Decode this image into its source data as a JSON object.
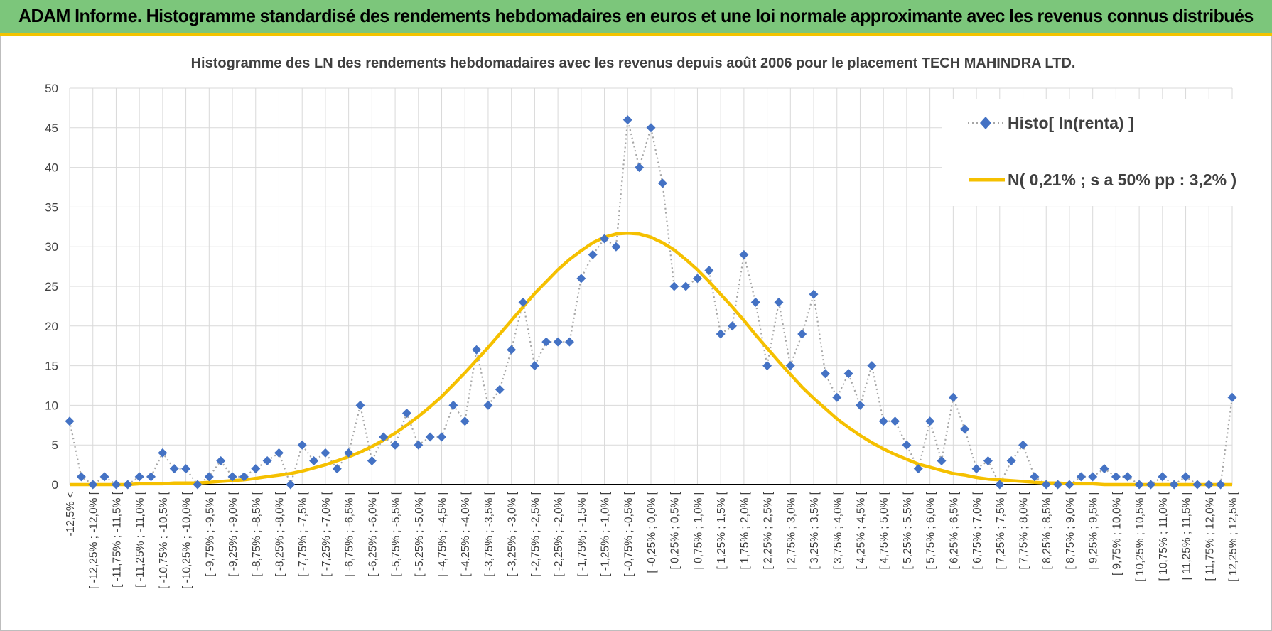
{
  "banner": {
    "title": "ADAM Informe. Histogramme standardisé des rendements hebdomadaires en euros et une loi normale approximante avec les revenus connus distribués"
  },
  "colors": {
    "banner_bg": "#7cc67b",
    "banner_border": "#f3c300",
    "histo_marker": "#4472c4",
    "histo_line": "#a6a6a6",
    "normal_curve": "#f5c000"
  },
  "chart_data": {
    "type": "line",
    "title": "Histogramme des LN des rendements hebdomadaires avec les revenus depuis août 2006  pour le placement TECH MAHINDRA  LTD.",
    "ylim": [
      0,
      50
    ],
    "yticks": [
      0,
      5,
      10,
      15,
      20,
      25,
      30,
      35,
      40,
      45,
      50
    ],
    "grid": true,
    "legend_position": "top-right",
    "x_labels": [
      "-12,5% <",
      "[ -12,25% ; -12,0% [",
      "[ -11,75% ; -11,5% [",
      "[ -11,25% ; -11,0% [",
      "[ -10,75% ; -10,5% [",
      "[ -10,25% ; -10,0% [",
      "[ -9,75% ; -9,5% [",
      "[ -9,25% ; -9,0% [",
      "[ -8,75% ; -8,5% [",
      "[ -8,25% ; -8,0% [",
      "[ -7,75% ; -7,5% [",
      "[ -7,25% ; -7,0% [",
      "[ -6,75% ; -6,5% [",
      "[ -6,25% ; -6,0% [",
      "[ -5,75% ; -5,5% [",
      "[ -5,25% ; -5,0% [",
      "[ -4,75% ; -4,5% [",
      "[ -4,25% ; -4,0% [",
      "[ -3,75% ; -3,5% [",
      "[ -3,25% ; -3,0% [",
      "[ -2,75% ; -2,5% [",
      "[ -2,25% ; -2,0% [",
      "[ -1,75% ; -1,5% [",
      "[ -1,25% ; -1,0% [",
      "[ -0,75% ; -0,5% [",
      "[ -0,25% ; 0,0% [",
      "[ 0,25% ; 0,5% [",
      "[ 0,75% ; 1,0% [",
      "[ 1,25% ; 1,5% [",
      "[ 1,75% ; 2,0% [",
      "[ 2,25% ; 2,5% [",
      "[ 2,75% ; 3,0% [",
      "[ 3,25% ; 3,5% [",
      "[ 3,75% ; 4,0% [",
      "[ 4,25% ; 4,5% [",
      "[ 4,75% ; 5,0% [",
      "[ 5,25% ; 5,5% [",
      "[ 5,75% ; 6,0% [",
      "[ 6,25% ; 6,5% [",
      "[ 6,75% ; 7,0% [",
      "[ 7,25% ; 7,5% [",
      "[ 7,75% ; 8,0% [",
      "[ 8,25% ; 8,5% [",
      "[ 8,75% ; 9,0% [",
      "[ 9,25% ; 9,5% [",
      "[ 9,75% ; 10,0% [",
      "[ 10,25% ; 10,5% [",
      "[ 10,75% ; 11,0% [",
      "[ 11,25% ; 11,5% [",
      "[ 11,75% ; 12,0% [",
      "[ 12,25% ; 12,5% ["
    ],
    "series": [
      {
        "name": "Histo[ ln(renta) ]",
        "style": "dotted line with diamond markers",
        "values": [
          8,
          1,
          0,
          1,
          0,
          0,
          1,
          1,
          4,
          2,
          2,
          0,
          1,
          3,
          1,
          1,
          2,
          3,
          4,
          0,
          5,
          3,
          4,
          2,
          4,
          10,
          3,
          6,
          5,
          9,
          5,
          6,
          6,
          10,
          8,
          17,
          10,
          12,
          17,
          23,
          15,
          18,
          18,
          18,
          26,
          29,
          31,
          30,
          46,
          40,
          45,
          38,
          25,
          25,
          26,
          27,
          19,
          20,
          29,
          23,
          15,
          23,
          15,
          19,
          24,
          14,
          11,
          14,
          10,
          15,
          8,
          8,
          5,
          2,
          8,
          3,
          11,
          7,
          2,
          3,
          0,
          3,
          5,
          1,
          0,
          0,
          0,
          1,
          1,
          2,
          1,
          1,
          0,
          0,
          1,
          0,
          1,
          0,
          0,
          0,
          11
        ]
      },
      {
        "name": "N( 0,21% ; s a 50% pp : 3,2% )",
        "style": "smooth solid line",
        "mean_pct": 0.21,
        "values": [
          0,
          0,
          0,
          0,
          0,
          0,
          0.1,
          0.1,
          0.1,
          0.2,
          0.2,
          0.2,
          0.3,
          0.4,
          0.5,
          0.6,
          0.8,
          1,
          1.2,
          1.4,
          1.7,
          2.1,
          2.5,
          3,
          3.5,
          4.1,
          4.8,
          5.6,
          6.5,
          7.5,
          8.6,
          9.8,
          11.1,
          12.6,
          14.1,
          15.7,
          17.3,
          19,
          20.7,
          22.4,
          24.1,
          25.6,
          27.1,
          28.4,
          29.5,
          30.5,
          31.2,
          31.6,
          31.7,
          31.6,
          31.2,
          30.5,
          29.6,
          28.4,
          27.1,
          25.6,
          24,
          22.4,
          20.7,
          18.9,
          17.2,
          15.5,
          13.9,
          12.3,
          10.9,
          9.6,
          8.3,
          7.2,
          6.2,
          5.3,
          4.5,
          3.8,
          3.2,
          2.6,
          2.2,
          1.8,
          1.4,
          1.2,
          0.9,
          0.7,
          0.6,
          0.5,
          0.4,
          0.3,
          0.2,
          0.2,
          0.1,
          0.1,
          0.1,
          0,
          0,
          0,
          0,
          0,
          0,
          0,
          0,
          0,
          0,
          0,
          0
        ]
      }
    ]
  }
}
